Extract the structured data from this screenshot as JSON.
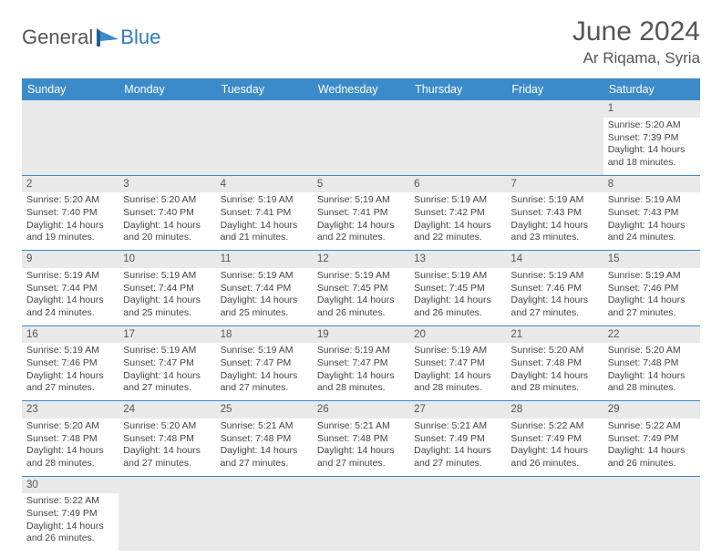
{
  "brand": {
    "general": "General",
    "blue": "Blue"
  },
  "title": "June 2024",
  "location": "Ar Riqama, Syria",
  "weekdays": [
    "Sunday",
    "Monday",
    "Tuesday",
    "Wednesday",
    "Thursday",
    "Friday",
    "Saturday"
  ],
  "colors": {
    "header_bg": "#3b8bca",
    "header_text": "#ffffff",
    "daynum_bg": "#e9e9e9",
    "border": "#3b8bca",
    "text": "#444444",
    "title_text": "#555555"
  },
  "days": {
    "1": {
      "sunrise": "5:20 AM",
      "sunset": "7:39 PM",
      "daylight": "14 hours and 18 minutes."
    },
    "2": {
      "sunrise": "5:20 AM",
      "sunset": "7:40 PM",
      "daylight": "14 hours and 19 minutes."
    },
    "3": {
      "sunrise": "5:20 AM",
      "sunset": "7:40 PM",
      "daylight": "14 hours and 20 minutes."
    },
    "4": {
      "sunrise": "5:19 AM",
      "sunset": "7:41 PM",
      "daylight": "14 hours and 21 minutes."
    },
    "5": {
      "sunrise": "5:19 AM",
      "sunset": "7:41 PM",
      "daylight": "14 hours and 22 minutes."
    },
    "6": {
      "sunrise": "5:19 AM",
      "sunset": "7:42 PM",
      "daylight": "14 hours and 22 minutes."
    },
    "7": {
      "sunrise": "5:19 AM",
      "sunset": "7:43 PM",
      "daylight": "14 hours and 23 minutes."
    },
    "8": {
      "sunrise": "5:19 AM",
      "sunset": "7:43 PM",
      "daylight": "14 hours and 24 minutes."
    },
    "9": {
      "sunrise": "5:19 AM",
      "sunset": "7:44 PM",
      "daylight": "14 hours and 24 minutes."
    },
    "10": {
      "sunrise": "5:19 AM",
      "sunset": "7:44 PM",
      "daylight": "14 hours and 25 minutes."
    },
    "11": {
      "sunrise": "5:19 AM",
      "sunset": "7:44 PM",
      "daylight": "14 hours and 25 minutes."
    },
    "12": {
      "sunrise": "5:19 AM",
      "sunset": "7:45 PM",
      "daylight": "14 hours and 26 minutes."
    },
    "13": {
      "sunrise": "5:19 AM",
      "sunset": "7:45 PM",
      "daylight": "14 hours and 26 minutes."
    },
    "14": {
      "sunrise": "5:19 AM",
      "sunset": "7:46 PM",
      "daylight": "14 hours and 27 minutes."
    },
    "15": {
      "sunrise": "5:19 AM",
      "sunset": "7:46 PM",
      "daylight": "14 hours and 27 minutes."
    },
    "16": {
      "sunrise": "5:19 AM",
      "sunset": "7:46 PM",
      "daylight": "14 hours and 27 minutes."
    },
    "17": {
      "sunrise": "5:19 AM",
      "sunset": "7:47 PM",
      "daylight": "14 hours and 27 minutes."
    },
    "18": {
      "sunrise": "5:19 AM",
      "sunset": "7:47 PM",
      "daylight": "14 hours and 27 minutes."
    },
    "19": {
      "sunrise": "5:19 AM",
      "sunset": "7:47 PM",
      "daylight": "14 hours and 28 minutes."
    },
    "20": {
      "sunrise": "5:19 AM",
      "sunset": "7:47 PM",
      "daylight": "14 hours and 28 minutes."
    },
    "21": {
      "sunrise": "5:20 AM",
      "sunset": "7:48 PM",
      "daylight": "14 hours and 28 minutes."
    },
    "22": {
      "sunrise": "5:20 AM",
      "sunset": "7:48 PM",
      "daylight": "14 hours and 28 minutes."
    },
    "23": {
      "sunrise": "5:20 AM",
      "sunset": "7:48 PM",
      "daylight": "14 hours and 28 minutes."
    },
    "24": {
      "sunrise": "5:20 AM",
      "sunset": "7:48 PM",
      "daylight": "14 hours and 27 minutes."
    },
    "25": {
      "sunrise": "5:21 AM",
      "sunset": "7:48 PM",
      "daylight": "14 hours and 27 minutes."
    },
    "26": {
      "sunrise": "5:21 AM",
      "sunset": "7:48 PM",
      "daylight": "14 hours and 27 minutes."
    },
    "27": {
      "sunrise": "5:21 AM",
      "sunset": "7:49 PM",
      "daylight": "14 hours and 27 minutes."
    },
    "28": {
      "sunrise": "5:22 AM",
      "sunset": "7:49 PM",
      "daylight": "14 hours and 26 minutes."
    },
    "29": {
      "sunrise": "5:22 AM",
      "sunset": "7:49 PM",
      "daylight": "14 hours and 26 minutes."
    },
    "30": {
      "sunrise": "5:22 AM",
      "sunset": "7:49 PM",
      "daylight": "14 hours and 26 minutes."
    }
  },
  "labels": {
    "sunrise": "Sunrise: ",
    "sunset": "Sunset: ",
    "daylight": "Daylight: "
  },
  "layout": {
    "first_day_column": 6,
    "num_days": 30,
    "columns": 7
  }
}
